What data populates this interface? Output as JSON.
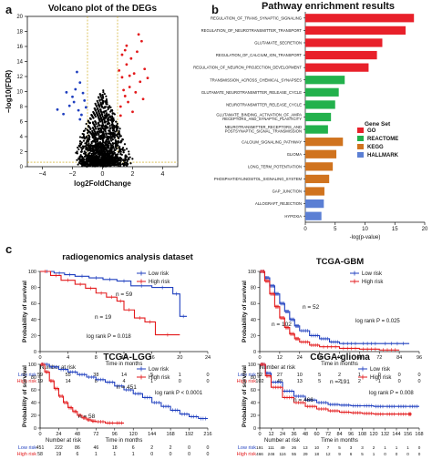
{
  "panel_labels": {
    "a": "a",
    "b": "b",
    "c": "c"
  },
  "chart_data": [
    {
      "panel": "a",
      "type": "scatter",
      "title": "Volcano plot of the DEGs",
      "xlabel": "log2FoldChange",
      "ylabel": "−log10(FDR)",
      "xlim": [
        -5,
        5
      ],
      "ylim": [
        0,
        20
      ],
      "xticks": [
        "−4",
        "−2",
        "0",
        "2",
        "4"
      ],
      "yticks": [
        "0",
        "2",
        "4",
        "6",
        "8",
        "10",
        "12",
        "14",
        "16",
        "18",
        "20"
      ],
      "threshold_lines": {
        "fdr": 0.6,
        "log2fc_left": -1,
        "log2fc_right": 1
      },
      "colors": {
        "down": "#1f3fbf",
        "up": "#e31a1c",
        "ns": "#000000"
      },
      "down_points": [
        [
          -1.6,
          7.5
        ],
        [
          -1.9,
          8.6
        ],
        [
          -1.3,
          9.8
        ],
        [
          -2.2,
          8.1
        ],
        [
          -1.5,
          11.2
        ],
        [
          -1.8,
          10.3
        ],
        [
          -2.6,
          7.0
        ],
        [
          -1.4,
          6.9
        ],
        [
          -2.0,
          9.3
        ],
        [
          -1.2,
          8.8
        ],
        [
          -1.7,
          12.6
        ],
        [
          -2.4,
          9.9
        ],
        [
          -1.1,
          7.9
        ],
        [
          -3.0,
          7.6
        ],
        [
          -1.5,
          6.3
        ]
      ],
      "up_points": [
        [
          1.2,
          8.0
        ],
        [
          1.5,
          9.4
        ],
        [
          1.8,
          10.6
        ],
        [
          1.3,
          11.9
        ],
        [
          2.1,
          12.4
        ],
        [
          1.6,
          13.6
        ],
        [
          1.9,
          14.4
        ],
        [
          2.3,
          15.3
        ],
        [
          2.6,
          16.7
        ],
        [
          1.4,
          10.2
        ],
        [
          1.7,
          8.6
        ],
        [
          2.2,
          9.9
        ],
        [
          2.5,
          11.3
        ],
        [
          1.1,
          12.8
        ],
        [
          2.8,
          13.0
        ],
        [
          2.0,
          7.3
        ],
        [
          1.3,
          14.9
        ],
        [
          3.0,
          11.8
        ],
        [
          1.6,
          16.1
        ],
        [
          2.4,
          17.6
        ],
        [
          1.2,
          6.8
        ],
        [
          1.8,
          12.1
        ],
        [
          2.7,
          9.0
        ],
        [
          1.5,
          15.5
        ]
      ],
      "ns_count": 1500
    },
    {
      "panel": "b",
      "type": "bar",
      "orientation": "horizontal",
      "title": "Pathway enrichment results",
      "xlabel": "-log(p-value)",
      "xlim": [
        0,
        20
      ],
      "xticks": [
        "0",
        "5",
        "10",
        "15",
        "20"
      ],
      "legend": {
        "title": "Gene Set",
        "entries": [
          "GO",
          "REACTOME",
          "KEGG",
          "HALLMARK"
        ],
        "placement": "right"
      },
      "colors": {
        "GO": "#e8202a",
        "REACTOME": "#22b14c",
        "KEGG": "#d0731e",
        "HALLMARK": "#5b7fd4"
      },
      "categories": [
        [
          "REGULATION_OF_TRANS_SYNAPTIC_SIGNALING"
        ],
        [
          "REGULATION_OF_NEUROTRANSMITTER_TRANSPORT"
        ],
        [
          "GLUTAMATE_SECRETION"
        ],
        [
          "REGULATION_OF_CALCIUM_ION_TRANSPORT"
        ],
        [
          "REGULATION_OF_NEURON_PROJECTION_DEVELOPMENT"
        ],
        [
          "TRANSMISSION_ACROSS_CHEMICAL_SYNAPSES"
        ],
        [
          "GLUTAMATE_NEUROTRANSMITTER_RELEASE_CYCLE"
        ],
        [
          "NEUROTRANSMITTER_RELEASE_CYCLE"
        ],
        [
          "GLUTAMATE_BINDING_ACTIVATION_OF_AMPA",
          "RECEPTORS_AND_SYNAPTIC_PLASTICITY"
        ],
        [
          "NEUROTRANSMITTER_RECEPTORS_AND",
          "POSTSYNAPTIC_SIGNAL_TRANSMISSION"
        ],
        [
          "CALCIUM_SIGNALING_PATHWAY"
        ],
        [
          "GLIOMA"
        ],
        [
          "LONG_TERM_POTENTIATION"
        ],
        [
          "PHOSPHATIDYLINOSITOL_SIGNALING_SYSTEM"
        ],
        [
          "GAP_JUNCTION"
        ],
        [
          "ALLOGRAFT_REJECTION"
        ],
        [
          "HYPOXIA"
        ]
      ],
      "values": [
        18.2,
        16.8,
        12.9,
        12.0,
        10.6,
        6.6,
        5.6,
        5.0,
        4.3,
        3.8,
        6.3,
        5.2,
        4.6,
        4.0,
        3.2,
        3.1,
        2.7
      ],
      "groups": [
        "GO",
        "GO",
        "GO",
        "GO",
        "GO",
        "REACTOME",
        "REACTOME",
        "REACTOME",
        "REACTOME",
        "REACTOME",
        "KEGG",
        "KEGG",
        "KEGG",
        "KEGG",
        "KEGG",
        "HALLMARK",
        "HALLMARK"
      ]
    },
    {
      "panel": "c1",
      "type": "line",
      "title": "radiogenomics analysis dataset",
      "xlabel": "Time in months",
      "ylabel": "Probability of survival",
      "xlim": [
        0,
        24
      ],
      "ylim": [
        0,
        100
      ],
      "xticks": [
        "0",
        "4",
        "8",
        "12",
        "16",
        "20",
        "24"
      ],
      "yticks": [
        "0",
        "20",
        "40",
        "60",
        "80",
        "100"
      ],
      "legend": [
        "Low risk",
        "High risk"
      ],
      "annotations": {
        "n_low": "n = 59",
        "n_high": "n = 19",
        "logrank": "log rank P = 0.018"
      },
      "series": [
        {
          "name": "Low risk",
          "color": "#1f3fbf",
          "x": [
            0,
            2,
            3.5,
            5,
            7,
            9,
            11,
            13,
            16,
            19,
            20,
            21
          ],
          "y": [
            100,
            98,
            96,
            94,
            92,
            90,
            88,
            82,
            80,
            72,
            44,
            44
          ]
        },
        {
          "name": "High risk",
          "color": "#e31a1c",
          "x": [
            0,
            1.5,
            3,
            5,
            6.5,
            8,
            9.5,
            11,
            12,
            13.5,
            15,
            16.5,
            20
          ],
          "y": [
            100,
            95,
            89,
            84,
            79,
            73,
            68,
            63,
            52,
            42,
            37,
            21,
            21
          ]
        }
      ],
      "risk_table": {
        "label": "Number at risk",
        "rows": [
          {
            "name": "Low risk",
            "values": [
              "59",
              "55",
              "38",
              "14",
              "5",
              "1",
              "0"
            ]
          },
          {
            "name": "High risk",
            "values": [
              "19",
              "14",
              "8",
              "4",
              "1",
              "0",
              "0"
            ]
          }
        ]
      }
    },
    {
      "panel": "c2",
      "type": "line",
      "title": "TCGA-GBM",
      "xlabel": "Time in months",
      "ylabel": "Probability of survival",
      "xlim": [
        0,
        96
      ],
      "ylim": [
        0,
        100
      ],
      "xticks": [
        "0",
        "12",
        "24",
        "36",
        "48",
        "60",
        "72",
        "84",
        "96"
      ],
      "yticks": [
        "0",
        "20",
        "40",
        "60",
        "80",
        "100"
      ],
      "legend": [
        "Low risk",
        "High risk"
      ],
      "annotations": {
        "n_low": "n = 52",
        "n_high": "n = 102",
        "logrank": "log rank P = 0.025"
      },
      "series": [
        {
          "name": "Low risk",
          "color": "#1f3fbf",
          "x": [
            0,
            3,
            6,
            9,
            12,
            15,
            18,
            21,
            24,
            30,
            36,
            42,
            48,
            60,
            72,
            90
          ],
          "y": [
            100,
            92,
            82,
            72,
            60,
            50,
            40,
            32,
            26,
            20,
            16,
            12,
            10,
            10,
            10,
            10
          ]
        },
        {
          "name": "High risk",
          "color": "#e31a1c",
          "x": [
            0,
            3,
            6,
            9,
            12,
            15,
            18,
            21,
            24,
            30,
            36,
            48,
            60,
            72,
            84
          ],
          "y": [
            100,
            88,
            72,
            56,
            42,
            30,
            22,
            16,
            12,
            8,
            6,
            4,
            3,
            2,
            2
          ]
        }
      ],
      "risk_table": {
        "label": "Number at risk",
        "rows": [
          {
            "name": "Low risk",
            "values": [
              "52",
              "27",
              "10",
              "5",
              "2",
              "1",
              "0",
              "0",
              "0"
            ]
          },
          {
            "name": "High risk",
            "values": [
              "102",
              "49",
              "13",
              "5",
              "2",
              "2",
              "1",
              "0",
              "0"
            ]
          }
        ]
      }
    },
    {
      "panel": "c3",
      "type": "line",
      "title": "TCGA-LGG",
      "xlabel": "Time in months",
      "ylabel": "Probability of survival",
      "xlim": [
        0,
        216
      ],
      "ylim": [
        0,
        100
      ],
      "xticks": [
        "0",
        "24",
        "48",
        "72",
        "96",
        "120",
        "144",
        "168",
        "192",
        "216"
      ],
      "yticks": [
        "0",
        "20",
        "40",
        "60",
        "80",
        "100"
      ],
      "legend": [
        "Low risk",
        "High risk"
      ],
      "annotations": {
        "n_low": "n = 451",
        "n_high": "n = 58",
        "logrank": "log rank P < 0.0001"
      },
      "series": [
        {
          "name": "Low risk",
          "color": "#1f3fbf",
          "x": [
            0,
            12,
            24,
            36,
            48,
            60,
            72,
            84,
            96,
            108,
            120,
            132,
            144,
            156,
            168,
            180,
            192,
            204,
            216
          ],
          "y": [
            100,
            96,
            92,
            88,
            84,
            80,
            76,
            72,
            66,
            60,
            54,
            48,
            40,
            34,
            28,
            22,
            18,
            15,
            15
          ]
        },
        {
          "name": "High risk",
          "color": "#e31a1c",
          "x": [
            0,
            6,
            12,
            18,
            24,
            30,
            36,
            42,
            48,
            54,
            60,
            66,
            72,
            84,
            96,
            108
          ],
          "y": [
            100,
            88,
            74,
            62,
            50,
            40,
            32,
            26,
            20,
            16,
            13,
            11,
            10,
            8,
            8,
            8
          ]
        }
      ],
      "risk_table": {
        "label": "Number at risk",
        "rows": [
          {
            "name": "Low risk",
            "values": [
              "451",
              "222",
              "86",
              "46",
              "18",
              "6",
              "2",
              "2",
              "0",
              "0"
            ]
          },
          {
            "name": "High risk",
            "values": [
              "58",
              "19",
              "6",
              "1",
              "1",
              "1",
              "0",
              "0",
              "0",
              "0"
            ]
          }
        ]
      }
    },
    {
      "panel": "c4",
      "type": "line",
      "title": "CGGA-glioma",
      "xlabel": "Time in months",
      "ylabel": "Probability of survival",
      "xlim": [
        0,
        168
      ],
      "ylim": [
        0,
        100
      ],
      "xticks": [
        "0",
        "12",
        "24",
        "36",
        "48",
        "60",
        "72",
        "84",
        "96",
        "108",
        "120",
        "132",
        "144",
        "156",
        "168"
      ],
      "yticks": [
        "0",
        "20",
        "40",
        "60",
        "80",
        "100"
      ],
      "legend": [
        "Low risk",
        "High risk"
      ],
      "annotations": {
        "n_low": "n = 191",
        "n_high": "n = 466",
        "logrank": "log rank P = 0.008"
      },
      "series": [
        {
          "name": "Low risk",
          "color": "#1f3fbf",
          "x": [
            0,
            6,
            12,
            24,
            36,
            48,
            60,
            72,
            84,
            96,
            108,
            120,
            132,
            144,
            156,
            168
          ],
          "y": [
            100,
            86,
            72,
            58,
            50,
            44,
            40,
            37,
            36,
            35,
            35,
            34,
            34,
            34,
            34,
            34
          ]
        },
        {
          "name": "High risk",
          "color": "#e31a1c",
          "x": [
            0,
            6,
            12,
            24,
            36,
            48,
            60,
            72,
            84,
            96,
            108,
            120,
            132,
            144,
            156,
            160
          ],
          "y": [
            100,
            82,
            64,
            48,
            40,
            34,
            30,
            27,
            25,
            24,
            23,
            22,
            22,
            22,
            22,
            22
          ]
        }
      ],
      "risk_table": {
        "label": "Number at risk",
        "rows": [
          {
            "name": "Low risk",
            "values": [
              "191",
              "111",
              "49",
              "26",
              "13",
              "10",
              "7",
              "5",
              "3",
              "3",
              "2",
              "1",
              "1",
              "1",
              "0"
            ]
          },
          {
            "name": "High risk",
            "values": [
              "466",
              "246",
              "116",
              "55",
              "29",
              "18",
              "12",
              "9",
              "6",
              "5",
              "1",
              "0",
              "0",
              "0",
              "0"
            ]
          }
        ]
      }
    }
  ]
}
